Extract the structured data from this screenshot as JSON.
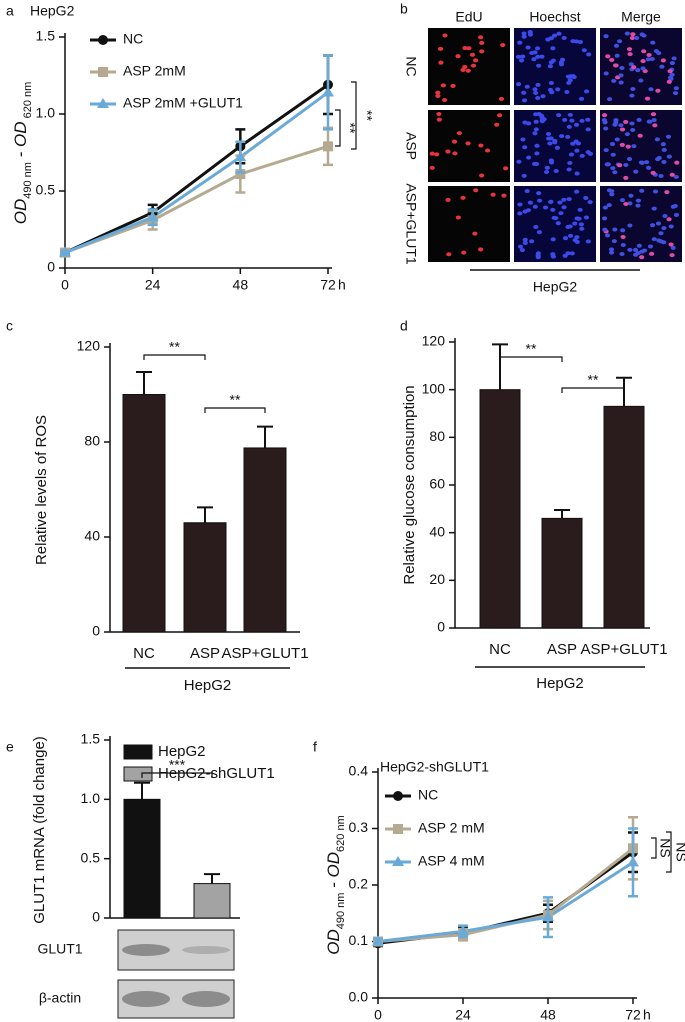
{
  "chart_data": [
    {
      "type": "line",
      "panel": "a",
      "title": "HepG2",
      "x": [
        0,
        24,
        48,
        72
      ],
      "xlim": [
        0,
        72
      ],
      "xticks": [
        0,
        24,
        48,
        72
      ],
      "xunit": "h",
      "ylim": [
        0,
        1.5
      ],
      "yticks": [
        0,
        {
          "value": 0.5,
          "label": "0.5"
        },
        {
          "value": 1,
          "label": "1.0"
        },
        {
          "value": 1.5,
          "label": "1.5"
        }
      ],
      "ylabel_parts": [
        "OD",
        "490 nm",
        " - OD",
        " 620 nm"
      ],
      "series": [
        {
          "name": "NC",
          "color": "#111111",
          "marker": "circle",
          "values": [
            0.1,
            0.36,
            0.79,
            1.19
          ],
          "errors": [
            0.01,
            0.05,
            0.11,
            0.19
          ]
        },
        {
          "name": "ASP 2mM",
          "color": "#b5aa90",
          "marker": "square",
          "values": [
            0.1,
            0.31,
            0.61,
            0.79
          ],
          "errors": [
            0.01,
            0.06,
            0.12,
            0.12
          ]
        },
        {
          "name": "ASP 2mM +GLUT1",
          "color": "#6aaad8",
          "marker": "triangle",
          "values": [
            0.1,
            0.33,
            0.72,
            1.14
          ],
          "errors": [
            0.01,
            0.05,
            0.1,
            0.24
          ]
        }
      ],
      "annotations": [
        "**",
        "**"
      ]
    },
    {
      "type": "image",
      "panel": "b",
      "columns": [
        "EdU",
        "Hoechst",
        "Merge"
      ],
      "rows": [
        "NC",
        "ASP",
        "ASP+GLUT1"
      ],
      "group_label": "HepG2"
    },
    {
      "type": "bar",
      "panel": "c",
      "categories": [
        "NC",
        "ASP",
        "ASP+GLUT1"
      ],
      "values": [
        100,
        46,
        77.5
      ],
      "errors": [
        9.5,
        6.5,
        9
      ],
      "color": "#2a1c1c",
      "ylim": [
        0,
        120
      ],
      "yticks": [
        0,
        40,
        80,
        120
      ],
      "ylabel": "Relative levels of ROS",
      "group_label": "HepG2",
      "annotations": [
        "**",
        "**"
      ]
    },
    {
      "type": "bar",
      "panel": "d",
      "categories": [
        "NC",
        "ASP",
        "ASP+GLUT1"
      ],
      "values": [
        100,
        46,
        93
      ],
      "errors": [
        19,
        3.5,
        12
      ],
      "color": "#2a1c1c",
      "ylim": [
        0,
        120
      ],
      "yticks": [
        0,
        20,
        40,
        60,
        80,
        100,
        120
      ],
      "ylabel": "Relative glucose consumption",
      "group_label": "HepG2",
      "annotations": [
        "**",
        "**"
      ]
    },
    {
      "type": "bar",
      "panel": "e",
      "series": [
        {
          "name": "HepG2",
          "color": "#111111",
          "values": [
            1.0
          ],
          "errors": [
            0.14
          ]
        },
        {
          "name": "HepG2-shGLUT1",
          "color": "#a3a3a3",
          "values": [
            0.29
          ],
          "errors": [
            0.08
          ]
        }
      ],
      "ylim": [
        0,
        1.5
      ],
      "yticks": [
        0,
        {
          "value": 0.5,
          "label": "0.5"
        },
        {
          "value": 1,
          "label": "1.0"
        },
        {
          "value": 1.5,
          "label": "1.5"
        }
      ],
      "ylabel": "GLUT1 mRNA (fold change)",
      "annotations": [
        "***"
      ],
      "blot_labels": [
        "GLUT1",
        "β-actin"
      ]
    },
    {
      "type": "line",
      "panel": "f",
      "title": "HepG2-shGLUT1",
      "x": [
        0,
        24,
        48,
        72
      ],
      "xlim": [
        0,
        72
      ],
      "xticks": [
        0,
        24,
        48,
        72
      ],
      "xunit": "h",
      "ylim": [
        0,
        0.4
      ],
      "yticks": [
        {
          "value": 0,
          "label": "0.0"
        },
        0.1,
        0.2,
        0.3,
        0.4
      ],
      "ylabel_parts": [
        "OD",
        "490 nm",
        " - OD",
        "620 nm"
      ],
      "series": [
        {
          "name": "NC",
          "color": "#111111",
          "marker": "circle",
          "values": [
            0.097,
            0.115,
            0.15,
            0.258
          ],
          "errors": [
            0.005,
            0.01,
            0.015,
            0.035
          ]
        },
        {
          "name": "ASP 2 mM",
          "color": "#b5aa90",
          "marker": "square",
          "values": [
            0.1,
            0.112,
            0.147,
            0.265
          ],
          "errors": [
            0.005,
            0.01,
            0.025,
            0.055
          ]
        },
        {
          "name": "ASP 4 mM",
          "color": "#6aaad8",
          "marker": "triangle",
          "values": [
            0.1,
            0.118,
            0.143,
            0.24
          ],
          "errors": [
            0.005,
            0.01,
            0.035,
            0.06
          ]
        }
      ],
      "annotations": [
        "NS",
        "NS"
      ]
    }
  ]
}
